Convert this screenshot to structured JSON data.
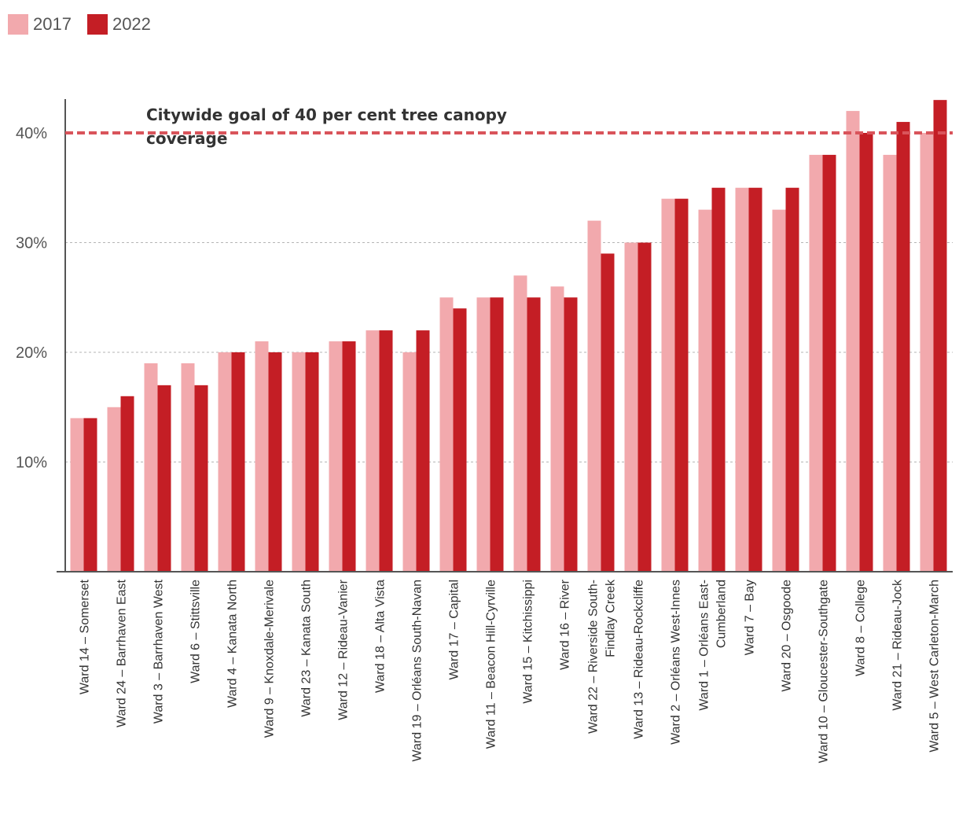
{
  "chart_data": {
    "type": "bar",
    "title": "",
    "xlabel": "",
    "ylabel": "",
    "ylim": [
      0,
      43
    ],
    "yticks": [
      10,
      20,
      30,
      40
    ],
    "ytick_labels": [
      "10%",
      "20%",
      "30%",
      "40%"
    ],
    "grid": true,
    "legend_position": "top-left",
    "categories": [
      [
        "Ward 14 – Somerset"
      ],
      [
        "Ward 24 – Barrhaven East"
      ],
      [
        "Ward 3 – Barrhaven West"
      ],
      [
        "Ward 6 – Stittsville"
      ],
      [
        "Ward 4 – Kanata North"
      ],
      [
        "Ward 9 – Knoxdale-Merivale"
      ],
      [
        "Ward 23 – Kanata South"
      ],
      [
        "Ward 12 – Rideau-Vanier"
      ],
      [
        "Ward 18 – Alta Vista"
      ],
      [
        "Ward 19 – Orléans South-Navan"
      ],
      [
        "Ward 17 – Capital"
      ],
      [
        "Ward 11 – Beacon Hill-Cyrville"
      ],
      [
        "Ward 15 – Kitchissippi"
      ],
      [
        "Ward 16 – River"
      ],
      [
        "Ward 22 – Riverside South-",
        "Findlay Creek"
      ],
      [
        "Ward 13 – Rideau-Rockcliffe"
      ],
      [
        "Ward 2 – Orléans West-Innes"
      ],
      [
        "Ward 1 – Orléans East-",
        "Cumberland"
      ],
      [
        "Ward 7 – Bay"
      ],
      [
        "Ward 20 – Osgoode"
      ],
      [
        "Ward 10 – Gloucester-Southgate"
      ],
      [
        "Ward 8 – College"
      ],
      [
        "Ward 21 – Rideau-Jock"
      ],
      [
        "Ward 5 – West Carleton-March"
      ]
    ],
    "series": [
      {
        "name": "2017",
        "color": "#f2a9ad",
        "values": [
          14,
          15,
          19,
          19,
          20,
          21,
          20,
          21,
          22,
          20,
          25,
          25,
          27,
          26,
          32,
          30,
          34,
          33,
          35,
          33,
          38,
          42,
          38,
          40
        ]
      },
      {
        "name": "2022",
        "color": "#c41e25",
        "values": [
          14,
          16,
          17,
          17,
          20,
          20,
          20,
          21,
          22,
          22,
          24,
          25,
          25,
          25,
          29,
          30,
          34,
          35,
          35,
          35,
          38,
          40,
          41,
          43
        ]
      }
    ],
    "goal": {
      "value": 40,
      "color": "#d9545b",
      "label_lines": [
        "Citywide goal of 40 per cent tree canopy",
        "coverage"
      ]
    }
  }
}
